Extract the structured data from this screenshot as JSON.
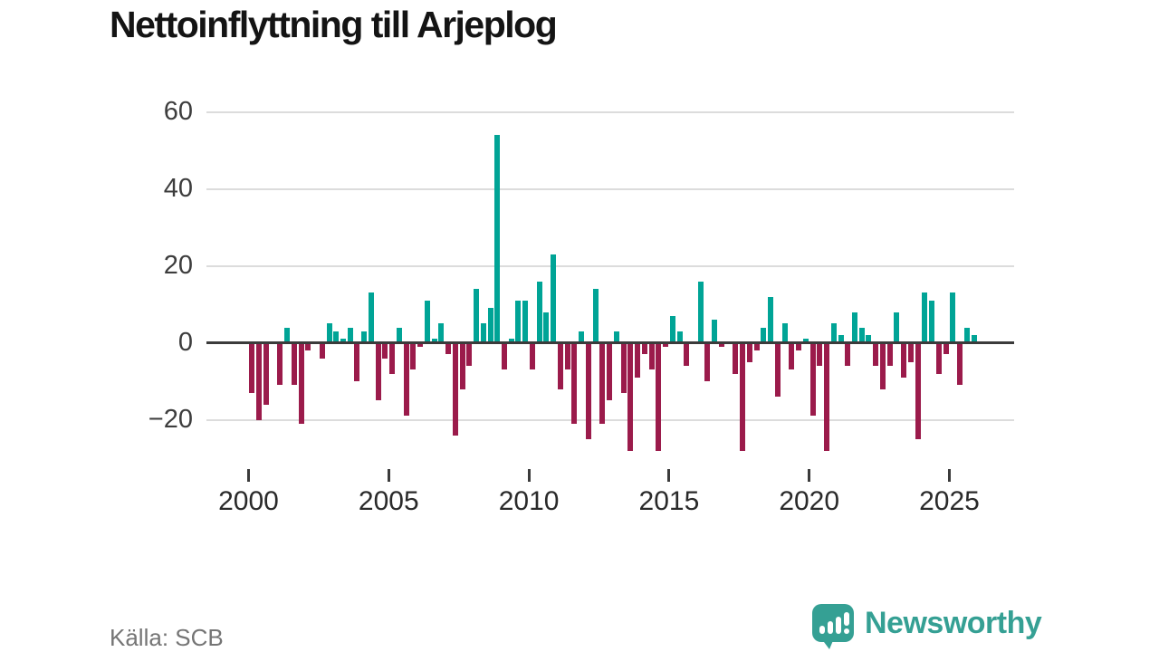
{
  "title": "Nettoinflyttning till Arjeplog",
  "source": "Källa: SCB",
  "branding": {
    "name": "Newsworthy"
  },
  "colors": {
    "positive_bar": "#00a496",
    "negative_bar": "#9b1b4b",
    "axis": "#3b3b3b",
    "gridline": "#dcdcdc",
    "brand_teal": "#35a094",
    "title_text": "#141414",
    "source_text": "#757575"
  },
  "chart_data": {
    "type": "bar",
    "title": "Nettoinflyttning till Arjeplog",
    "frequency": "quarterly",
    "start_period": "2000 Q1",
    "end_period": "2025 Q4",
    "xlabel": "",
    "ylabel": "",
    "grid": true,
    "ylim": [
      -30,
      65
    ],
    "y_ticks": [
      {
        "v": 60,
        "label": "60"
      },
      {
        "v": 40,
        "label": "40"
      },
      {
        "v": 20,
        "label": "20"
      },
      {
        "v": 0,
        "label": "0"
      },
      {
        "v": -20,
        "label": "−20"
      }
    ],
    "x_ticks": [
      {
        "year": 2000,
        "label": "2000"
      },
      {
        "year": 2005,
        "label": "2005"
      },
      {
        "year": 2010,
        "label": "2010"
      },
      {
        "year": 2015,
        "label": "2015"
      },
      {
        "year": 2020,
        "label": "2020"
      },
      {
        "year": 2025,
        "label": "2025"
      }
    ],
    "values": [
      -13,
      -20,
      -16,
      0,
      -11,
      4,
      -11,
      -21,
      -2,
      0,
      -4,
      5,
      3,
      1,
      4,
      -10,
      3,
      13,
      -15,
      -4,
      -8,
      4,
      -19,
      -7,
      -1,
      11,
      1,
      5,
      -3,
      -24,
      -12,
      -6,
      14,
      5,
      9,
      54,
      -7,
      1,
      11,
      11,
      -7,
      16,
      8,
      23,
      -12,
      -7,
      -21,
      3,
      -25,
      14,
      -21,
      -15,
      3,
      -13,
      -28,
      -9,
      -3,
      -7,
      -28,
      -1,
      7,
      3,
      -6,
      0,
      16,
      -10,
      6,
      -1,
      0,
      -8,
      -28,
      -5,
      -2,
      4,
      12,
      -14,
      5,
      -7,
      -2,
      1,
      -19,
      -6,
      -28,
      5,
      2,
      -6,
      8,
      4,
      2,
      -6,
      -12,
      -6,
      8,
      -9,
      -5,
      -25,
      13,
      11,
      -8,
      -3,
      13,
      -11,
      4,
      2
    ]
  }
}
